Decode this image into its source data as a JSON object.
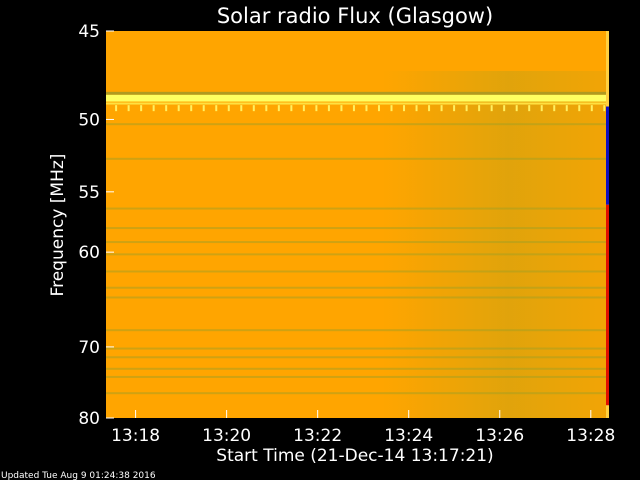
{
  "chart_data": {
    "type": "heatmap",
    "title": "Solar radio Flux (Glasgow)",
    "xlabel": "Start Time (21-Dec-14 13:17:21)",
    "ylabel": "Frequency [MHz]",
    "x_ticks": [
      "13:18",
      "13:20",
      "13:22",
      "13:24",
      "13:26",
      "13:28"
    ],
    "x_tick_minutes": [
      0.65,
      2.65,
      4.65,
      6.65,
      8.65,
      10.65
    ],
    "xlim_minutes": [
      0,
      11.05
    ],
    "y_ticks": [
      45,
      50,
      55,
      60,
      70,
      80
    ],
    "ylim": [
      45,
      80
    ],
    "y_scale": "inverse",
    "y_direction": "increasing-downward",
    "colors": {
      "background": "#FFA500",
      "band_bright": "#FFFF60",
      "band_dim": "#B09A20",
      "greenish": "#A8A020",
      "right_edge_red": "#E01000",
      "right_edge_blue": "#1010C0"
    },
    "bright_band_mhz": [
      48.5,
      48.9
    ],
    "spike_row_mhz": 49.3,
    "dim_lines_mhz": [
      50.3,
      52.6,
      56.3,
      57.9,
      59.1,
      60.2,
      61.8,
      63.4,
      64.4,
      68.0,
      70.2,
      71.3,
      72.8,
      73.9,
      76.2
    ],
    "footer": "Updated Tue Aug  9 01:24:38 2016"
  }
}
